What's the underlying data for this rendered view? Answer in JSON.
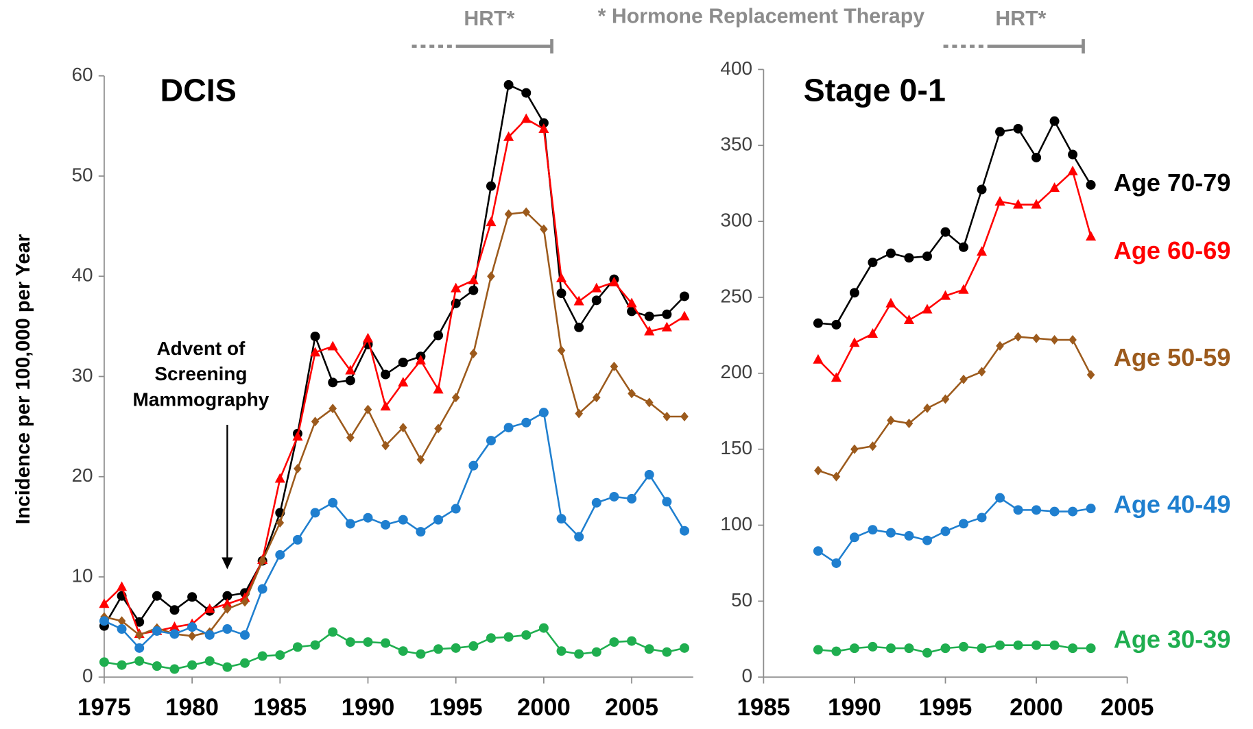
{
  "chart_data": [
    {
      "type": "line",
      "title": "DCIS",
      "ylabel": "Incidence per 100,000 per Year",
      "annotation": [
        "Advent of",
        "Screening",
        "Mammography"
      ],
      "bracket_label": "HRT*",
      "xlim": [
        1975,
        2008.5
      ],
      "xticks": [
        1975,
        1980,
        1985,
        1990,
        1995,
        2000,
        2005
      ],
      "ylim": [
        0,
        60
      ],
      "yticks": [
        0,
        10,
        20,
        30,
        40,
        50,
        60
      ],
      "x": [
        1975,
        1976,
        1977,
        1978,
        1979,
        1980,
        1981,
        1982,
        1983,
        1984,
        1985,
        1986,
        1987,
        1988,
        1989,
        1990,
        1991,
        1992,
        1993,
        1994,
        1995,
        1996,
        1997,
        1998,
        1999,
        2000,
        2001,
        2002,
        2003,
        2004,
        2005,
        2006,
        2007,
        2008
      ],
      "series": [
        {
          "color": "#000000",
          "marker": "circle",
          "values": [
            5.1,
            8.1,
            5.5,
            8.1,
            6.7,
            8.0,
            6.6,
            8.1,
            8.4,
            11.6,
            16.4,
            24.3,
            34.0,
            29.4,
            29.6,
            33.2,
            30.2,
            31.4,
            32.0,
            34.1,
            37.3,
            38.6,
            49.0,
            59.1,
            58.3,
            55.3,
            38.3,
            34.9,
            37.6,
            39.7,
            36.5,
            36.0,
            36.2,
            38.0
          ]
        },
        {
          "color": "#ff0000",
          "marker": "triangle",
          "values": [
            7.3,
            9.0,
            4.3,
            4.6,
            5.0,
            5.3,
            6.8,
            7.3,
            7.9,
            11.7,
            19.8,
            24.0,
            32.4,
            33.0,
            30.6,
            33.8,
            27.0,
            29.4,
            31.6,
            28.7,
            38.8,
            39.6,
            45.4,
            53.9,
            55.7,
            54.7,
            39.8,
            37.5,
            38.8,
            39.4,
            37.3,
            34.5,
            34.9,
            36.0
          ]
        },
        {
          "color": "#9c5a1c",
          "marker": "diamond",
          "values": [
            6.0,
            5.6,
            4.2,
            4.9,
            4.3,
            4.1,
            4.5,
            6.8,
            7.5,
            11.6,
            15.4,
            20.8,
            25.5,
            26.8,
            23.9,
            26.7,
            23.1,
            24.9,
            21.7,
            24.8,
            27.9,
            32.3,
            40.0,
            46.2,
            46.4,
            44.7,
            32.6,
            26.3,
            27.9,
            31.0,
            28.3,
            27.4,
            26.0,
            26.0
          ]
        },
        {
          "color": "#1f7fcf",
          "marker": "circle",
          "values": [
            5.6,
            4.8,
            2.9,
            4.6,
            4.3,
            5.0,
            4.2,
            4.8,
            4.2,
            8.8,
            12.2,
            13.7,
            16.4,
            17.4,
            15.3,
            15.9,
            15.2,
            15.7,
            14.5,
            15.7,
            16.8,
            21.1,
            23.6,
            24.9,
            25.4,
            26.4,
            15.8,
            14.0,
            17.4,
            18.0,
            17.8,
            20.2,
            17.5,
            14.6
          ]
        },
        {
          "color": "#1fae4f",
          "marker": "circle",
          "values": [
            1.5,
            1.2,
            1.6,
            1.1,
            0.8,
            1.2,
            1.6,
            1.0,
            1.4,
            2.1,
            2.2,
            3.0,
            3.2,
            4.5,
            3.5,
            3.5,
            3.4,
            2.6,
            2.3,
            2.8,
            2.9,
            3.1,
            3.9,
            4.0,
            4.2,
            4.9,
            2.6,
            2.3,
            2.5,
            3.5,
            3.6,
            2.8,
            2.5,
            2.9
          ]
        }
      ]
    },
    {
      "type": "line",
      "title": "Stage 0-1",
      "bracket_label": "HRT*",
      "xlim": [
        1985,
        2005
      ],
      "xticks": [
        1985,
        1990,
        1995,
        2000,
        2005
      ],
      "ylim": [
        0,
        400
      ],
      "yticks": [
        0,
        50,
        100,
        150,
        200,
        250,
        300,
        350,
        400
      ],
      "x": [
        1988,
        1989,
        1990,
        1991,
        1992,
        1993,
        1994,
        1995,
        1996,
        1997,
        1998,
        1999,
        2000,
        2001,
        2002,
        2003
      ],
      "series": [
        {
          "name": "Age 70-79",
          "color": "#000000",
          "marker": "circle",
          "values": [
            233,
            232,
            253,
            273,
            279,
            276,
            277,
            293,
            283,
            321,
            359,
            361,
            342,
            366,
            344,
            324
          ]
        },
        {
          "name": "Age 60-69",
          "color": "#ff0000",
          "marker": "triangle",
          "values": [
            209,
            197,
            220,
            226,
            246,
            235,
            242,
            251,
            255,
            280,
            313,
            311,
            311,
            322,
            333,
            290
          ]
        },
        {
          "name": "Age 50-59",
          "color": "#9c5a1c",
          "marker": "diamond",
          "values": [
            136,
            132,
            150,
            152,
            169,
            167,
            177,
            183,
            196,
            201,
            218,
            224,
            223,
            222,
            222,
            199
          ]
        },
        {
          "name": "Age 40-49",
          "color": "#1f7fcf",
          "marker": "circle",
          "values": [
            83,
            75,
            92,
            97,
            95,
            93,
            90,
            96,
            101,
            105,
            118,
            110,
            110,
            109,
            109,
            111
          ]
        },
        {
          "name": "Age 30-39",
          "color": "#1fae4f",
          "marker": "circle",
          "values": [
            18,
            17,
            19,
            20,
            19,
            19,
            16,
            19,
            20,
            19,
            21,
            21,
            21,
            21,
            19,
            19
          ]
        }
      ]
    }
  ],
  "footnote": "* Hormone Replacement Therapy"
}
